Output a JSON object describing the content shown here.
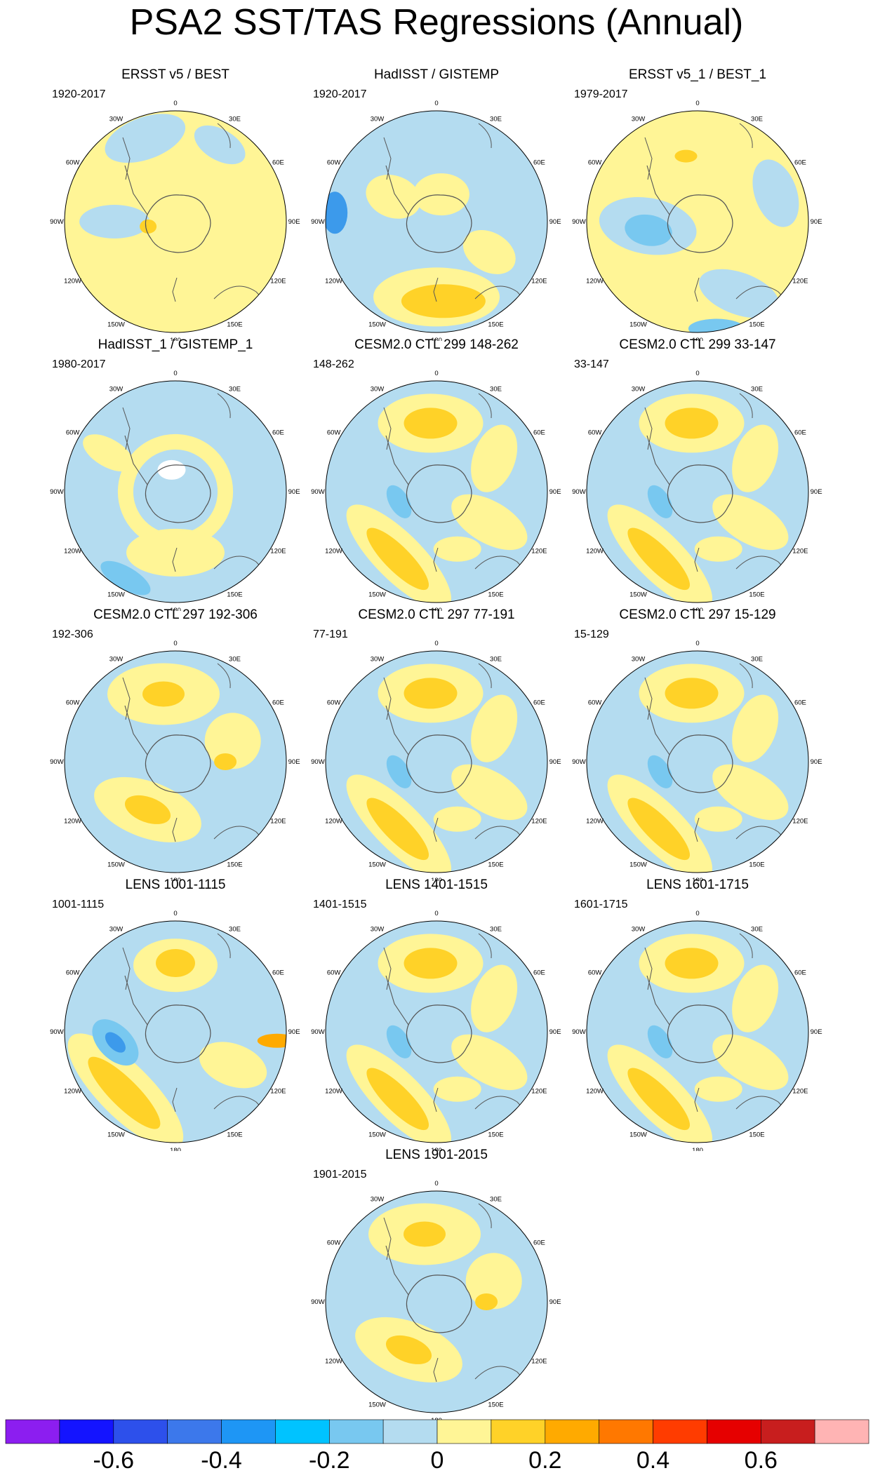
{
  "title": "PSA2 SST/TAS Regressions (Annual)",
  "longitude_labels": [
    "0",
    "30E",
    "60E",
    "90E",
    "120E",
    "150E",
    "180",
    "150W",
    "120W",
    "90W",
    "60W",
    "30W"
  ],
  "panels": [
    {
      "title": "ERSST v5 / BEST",
      "period": "1920-2017",
      "pattern": "obs_ersst"
    },
    {
      "title": "HadISST / GISTEMP",
      "period": "1920-2017",
      "pattern": "obs_hadisst"
    },
    {
      "title": "ERSST v5_1 / BEST_1",
      "period": "1979-2017",
      "pattern": "obs_ersst_1"
    },
    {
      "title": "HadISST_1 / GISTEMP_1",
      "period": "1980-2017",
      "pattern": "obs_hadisst_1"
    },
    {
      "title": "CESM2.0 CTL 299 148-262",
      "period": "148-262",
      "pattern": "model"
    },
    {
      "title": "CESM2.0 CTL 299 33-147",
      "period": "33-147",
      "pattern": "model"
    },
    {
      "title": "CESM2.0 CTL 297 192-306",
      "period": "192-306",
      "pattern": "model_weak"
    },
    {
      "title": "CESM2.0 CTL 297 77-191",
      "period": "77-191",
      "pattern": "model"
    },
    {
      "title": "CESM2.0 CTL 297 15-129",
      "period": "15-129",
      "pattern": "model"
    },
    {
      "title": "LENS 1001-1115",
      "period": "1001-1115",
      "pattern": "model_strong"
    },
    {
      "title": "LENS 1401-1515",
      "period": "1401-1515",
      "pattern": "model"
    },
    {
      "title": "LENS 1601-1715",
      "period": "1601-1715",
      "pattern": "model"
    },
    {
      "title": "LENS 1901-2015",
      "period": "1901-2015",
      "pattern": "model_weak"
    }
  ],
  "colorbar": {
    "colors": [
      "#8c1ef0",
      "#1414ff",
      "#2d50eb",
      "#3c78eb",
      "#1e96f5",
      "#00c3ff",
      "#78c8f0",
      "#b4dcf0",
      "#fff596",
      "#ffd228",
      "#ffaa00",
      "#ff7800",
      "#ff3c00",
      "#e60000",
      "#c81e1e",
      "#ffb4b4"
    ],
    "labels": [
      "-0.6",
      "-0.4",
      "-0.2",
      "0",
      "0.2",
      "0.4",
      "0.6"
    ]
  },
  "colors": {
    "neg_light": "#b4dcf0",
    "neg_mid": "#78c8f0",
    "neg_strong": "#3c9aeb",
    "pos_light": "#fff596",
    "pos_mid": "#ffd228",
    "pos_strong": "#ffaa00",
    "land_line": "#555555"
  }
}
